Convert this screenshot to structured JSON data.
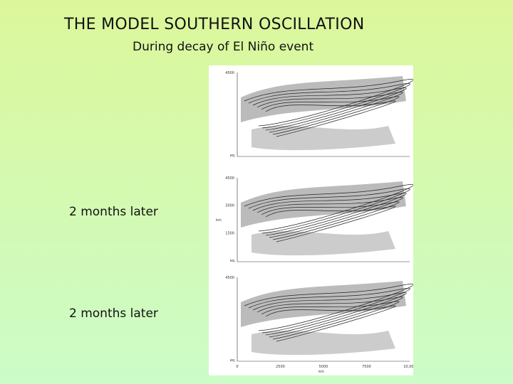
{
  "title": "THE MODEL SOUTHERN OSCILLATION",
  "subtitle": "During decay of El Niño event",
  "captions": [
    "2 months later",
    "2 months later"
  ],
  "figure": {
    "panels": [
      {
        "y_ticks": [
          "4500",
          "eq"
        ]
      },
      {
        "y_ticks": [
          "4500",
          "3000",
          "1500",
          "eq"
        ],
        "y_label": "km"
      },
      {
        "y_ticks": [
          "4500",
          "eq"
        ],
        "x_ticks": [
          "0",
          "2500",
          "5000",
          "7500",
          "10,000"
        ]
      }
    ],
    "x_label": "km"
  }
}
